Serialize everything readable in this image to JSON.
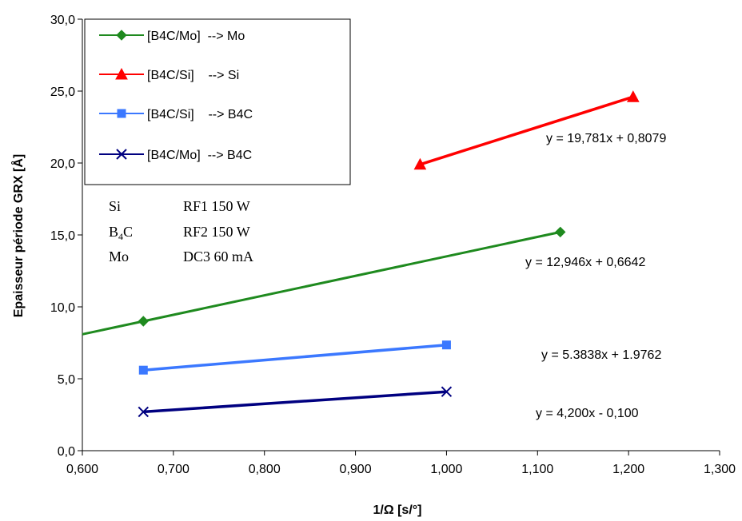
{
  "chart_data": {
    "type": "line",
    "title": "",
    "xlabel": "1/Ω [s/°]",
    "ylabel": "Epaisseur période GRX [Å]",
    "xlim": [
      0.6,
      1.3
    ],
    "ylim": [
      0,
      30
    ],
    "xticks": [
      "0,600",
      "0,700",
      "0,800",
      "0,900",
      "1,000",
      "1,100",
      "1,200",
      "1,300"
    ],
    "yticks": [
      "0,0",
      "5,0",
      "10,0",
      "15,0",
      "20,0",
      "25,0",
      "30,0"
    ],
    "grid": false,
    "legend_position": "top-left",
    "series": [
      {
        "name": "[B4C/Mo]  --> Mo",
        "color": "#1f8a1f",
        "marker": "diamond",
        "x": [
          0.667,
          1.125
        ],
        "y": [
          9.0,
          15.2
        ],
        "trendline": {
          "equation": "y = 12,946x + 0,6642",
          "x": [
            0.6,
            1.125
          ]
        }
      },
      {
        "name": "[B4C/Si]    --> Si",
        "color": "#ff0000",
        "marker": "triangle",
        "x": [
          0.971,
          1.205
        ],
        "y": [
          19.9,
          24.6
        ],
        "trendline": {
          "equation": "y = 19,781x + 0,8079"
        }
      },
      {
        "name": "[B4C/Si]    --> B4C",
        "color": "#3b78ff",
        "marker": "square",
        "x": [
          0.667,
          1.0
        ],
        "y": [
          5.6,
          7.35
        ],
        "trendline": {
          "equation": "y = 5.3838x + 1.9762"
        }
      },
      {
        "name": "[B4C/Mo]  --> B4C",
        "color": "#000080",
        "marker": "x",
        "x": [
          0.667,
          1.0
        ],
        "y": [
          2.7,
          4.1
        ],
        "trendline": {
          "equation": "y = 4,200x - 0,100"
        }
      }
    ],
    "annotations": {
      "equations": [
        "y = 19,781x + 0,8079",
        "y = 12,946x + 0,6642",
        "y = 5.3838x + 1.9762",
        "y = 4,200x - 0,100"
      ],
      "conditions": [
        {
          "element": "Si",
          "setting": "RF1 150 W"
        },
        {
          "element": "B4C",
          "element_base": "B",
          "element_sub": "4",
          "element_end": "C",
          "setting": "RF2 150 W"
        },
        {
          "element": "Mo",
          "setting": "DC3 60 mA"
        }
      ]
    }
  }
}
